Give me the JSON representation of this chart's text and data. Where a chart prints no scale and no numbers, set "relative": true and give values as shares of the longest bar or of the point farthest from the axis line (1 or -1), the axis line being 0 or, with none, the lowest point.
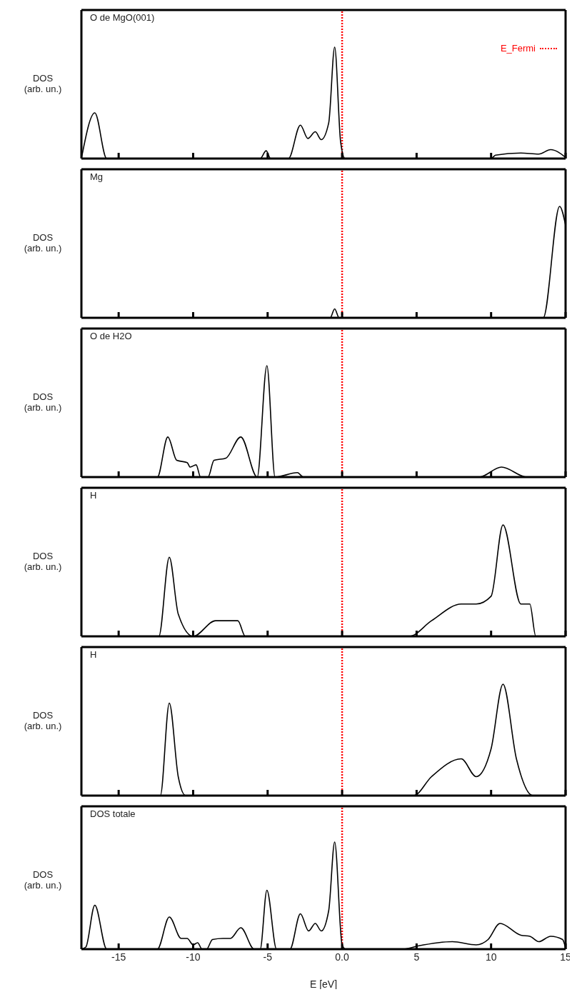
{
  "chart_data": [
    {
      "type": "line",
      "title": "O de MgO(001)",
      "ylabel": "DOS\n(arb. un.)",
      "relative": true,
      "xlim": [
        -17.5,
        15
      ],
      "xticks": [
        -15,
        -10,
        -5,
        0,
        5,
        10,
        15
      ],
      "tick_labels": false,
      "x": [
        -17.5,
        -16.6,
        -15.8,
        -5.5,
        -5.1,
        -4.8,
        -3.6,
        -2.8,
        -2.3,
        -1.8,
        -1.4,
        -0.9,
        -0.5,
        -0.1,
        0.2,
        10,
        10.3,
        12,
        13.2,
        14,
        15
      ],
      "series": [
        {
          "color": "#000000",
          "values": [
            0,
            0.41,
            0,
            0,
            0.07,
            0,
            0,
            0.3,
            0.18,
            0.24,
            0.17,
            0.32,
            1,
            0.15,
            0,
            0,
            0.03,
            0.05,
            0.04,
            0.08,
            0.01
          ]
        }
      ],
      "ref_lines": [
        {
          "axis": "x",
          "value": 0,
          "label": "E_Fermi",
          "color": "#ff0000",
          "line_style": "dotted"
        }
      ]
    },
    {
      "type": "line",
      "title": "Mg",
      "ylabel": "DOS\n(arb. un.)",
      "relative": true,
      "xlim": [
        -17.5,
        15
      ],
      "xticks": [
        -15,
        -10,
        -5,
        0,
        5,
        10,
        15
      ],
      "tick_labels": false,
      "x": [
        -17.5,
        -0.8,
        -0.5,
        -0.2,
        13.5,
        14.6,
        15
      ],
      "series": [
        {
          "color": "#000000",
          "values": [
            0,
            0,
            0.08,
            0,
            0,
            1,
            0.83
          ]
        }
      ],
      "ref_lines": [
        {
          "axis": "x",
          "value": 0,
          "color": "#ff0000",
          "line_style": "dotted"
        }
      ]
    },
    {
      "type": "line",
      "title": "O de H2O",
      "ylabel": "DOS\n(arb. un.)",
      "relative": true,
      "xlim": [
        -17.5,
        15
      ],
      "xticks": [
        -15,
        -10,
        -5,
        0,
        5,
        10,
        15
      ],
      "tick_labels": false,
      "x": [
        -17.5,
        -12.4,
        -11.7,
        -11.1,
        -10.4,
        -10.2,
        -9.8,
        -9.5,
        -9.0,
        -8.6,
        -7.8,
        -6.8,
        -5.7,
        -5.05,
        -4.5,
        -3.0,
        -2.6,
        9.2,
        10.7,
        12.4,
        15
      ],
      "series": [
        {
          "color": "#000000",
          "values": [
            0,
            0,
            0.36,
            0.15,
            0.13,
            0.09,
            0.11,
            0,
            0,
            0.15,
            0.17,
            0.36,
            0,
            1,
            0,
            0.04,
            0,
            0,
            0.09,
            0,
            0
          ]
        }
      ],
      "ref_lines": [
        {
          "axis": "x",
          "value": 0,
          "color": "#ff0000",
          "line_style": "dotted"
        }
      ]
    },
    {
      "type": "line",
      "title": "H",
      "ylabel": "DOS\n(arb. un.)",
      "relative": true,
      "xlim": [
        -17.5,
        15
      ],
      "xticks": [
        -15,
        -10,
        -5,
        0,
        5,
        10,
        15
      ],
      "tick_labels": false,
      "x": [
        -17.5,
        -12.3,
        -11.6,
        -11,
        -10,
        -8.5,
        -7,
        -6.5,
        4.5,
        6,
        8,
        9,
        10,
        10.8,
        12,
        12.6,
        13,
        15
      ],
      "series": [
        {
          "color": "#000000",
          "values": [
            0,
            0,
            0.71,
            0.2,
            0,
            0.14,
            0.14,
            0,
            0,
            0.14,
            0.29,
            0.29,
            0.36,
            1,
            0.29,
            0.29,
            0,
            0
          ]
        }
      ],
      "ref_lines": [
        {
          "axis": "x",
          "value": 0,
          "color": "#ff0000",
          "line_style": "dotted"
        }
      ]
    },
    {
      "type": "line",
      "title": "H",
      "ylabel": "DOS\n(arb. un.)",
      "relative": true,
      "xlim": [
        -17.5,
        15
      ],
      "xticks": [
        -15,
        -10,
        -5,
        0,
        5,
        10,
        15
      ],
      "tick_labels": false,
      "x": [
        -17.5,
        -12.2,
        -11.6,
        -11,
        -10.5,
        4.8,
        6,
        8,
        9,
        10,
        10.8,
        11.7,
        12.8,
        15
      ],
      "series": [
        {
          "color": "#000000",
          "values": [
            0,
            0,
            0.83,
            0.17,
            0,
            0,
            0.17,
            0.33,
            0.17,
            0.42,
            1,
            0.33,
            0,
            0
          ]
        }
      ],
      "ref_lines": [
        {
          "axis": "x",
          "value": 0,
          "color": "#ff0000",
          "line_style": "dotted"
        }
      ]
    },
    {
      "type": "line",
      "title": "DOS totale",
      "ylabel": "DOS\n(arb. un.)",
      "xlabel": "E [eV]",
      "relative": true,
      "xlim": [
        -17.5,
        15
      ],
      "xticks": [
        -15,
        -10,
        -5,
        {
          "value": 0,
          "label": "0.0"
        },
        5,
        10,
        15
      ],
      "tick_labels": "x",
      "x": [
        -17.5,
        -17.2,
        -16.6,
        -15.8,
        -12.4,
        -11.6,
        -10.8,
        -10.4,
        -10,
        -9.7,
        -9.4,
        -9.1,
        -8.7,
        -8.0,
        -7.5,
        -6.8,
        -5.9,
        -5.5,
        -5.05,
        -4.4,
        -3.5,
        -2.8,
        -2.25,
        -1.8,
        -1.4,
        -0.9,
        -0.5,
        0,
        0.25,
        4.1,
        5.1,
        7.4,
        9.0,
        9.8,
        10.6,
        12.0,
        12.6,
        13.2,
        14.0,
        14.8,
        15
      ],
      "series": [
        {
          "color": "#000000",
          "values": [
            0,
            0.02,
            0.41,
            0,
            0,
            0.3,
            0.1,
            0.1,
            0.04,
            0.06,
            0,
            0,
            0.09,
            0.1,
            0.1,
            0.2,
            0,
            0,
            0.55,
            0,
            0,
            0.33,
            0.17,
            0.24,
            0.17,
            0.36,
            1,
            0.04,
            0,
            0,
            0.03,
            0.07,
            0.04,
            0.09,
            0.24,
            0.13,
            0.12,
            0.07,
            0.12,
            0.09,
            0.01
          ]
        }
      ],
      "ref_lines": [
        {
          "axis": "x",
          "value": 0,
          "color": "#ff0000",
          "line_style": "dotted"
        }
      ]
    }
  ]
}
